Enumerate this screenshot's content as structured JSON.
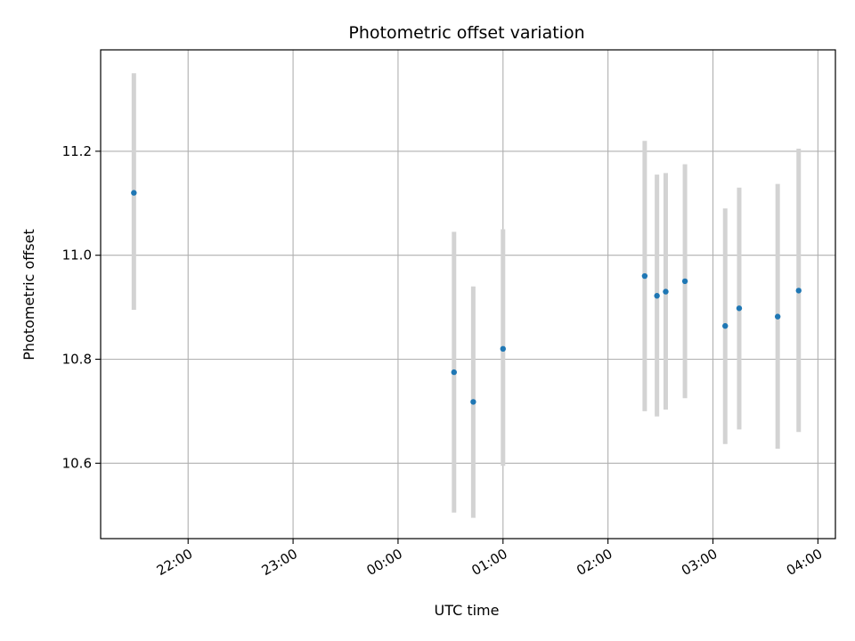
{
  "chart_data": {
    "type": "scatter",
    "title": "Photometric offset variation",
    "xlabel": "UTC time",
    "ylabel": "Photometric offset",
    "x_is_time": true,
    "xlim": [
      "21:10",
      "04:10"
    ],
    "ylim": [
      10.455,
      11.395
    ],
    "grid": true,
    "point_color": "#1f77b4",
    "errorbar_color": "#d3d3d3",
    "x_ticks": [
      {
        "value": "22:00",
        "label": "22:00"
      },
      {
        "value": "23:00",
        "label": "23:00"
      },
      {
        "value": "24:00",
        "label": "00:00"
      },
      {
        "value": "25:00",
        "label": "01:00"
      },
      {
        "value": "26:00",
        "label": "02:00"
      },
      {
        "value": "27:00",
        "label": "03:00"
      },
      {
        "value": "28:00",
        "label": "04:00"
      }
    ],
    "y_ticks": [
      {
        "value": 10.6,
        "label": "10.6"
      },
      {
        "value": 10.8,
        "label": "10.8"
      },
      {
        "value": 11.0,
        "label": "11.0"
      },
      {
        "value": 11.2,
        "label": "11.2"
      }
    ],
    "points": [
      {
        "time": "21:29",
        "y": 11.12,
        "yerr_low": 10.895,
        "yerr_high": 11.35
      },
      {
        "time": "00:32",
        "y": 10.775,
        "yerr_low": 10.505,
        "yerr_high": 11.045
      },
      {
        "time": "00:43",
        "y": 10.718,
        "yerr_low": 10.495,
        "yerr_high": 10.94
      },
      {
        "time": "01:00",
        "y": 10.82,
        "yerr_low": 10.595,
        "yerr_high": 11.05
      },
      {
        "time": "02:21",
        "y": 10.96,
        "yerr_low": 10.7,
        "yerr_high": 11.22
      },
      {
        "time": "02:28",
        "y": 10.922,
        "yerr_low": 10.69,
        "yerr_high": 11.155
      },
      {
        "time": "02:33",
        "y": 10.93,
        "yerr_low": 10.703,
        "yerr_high": 11.158
      },
      {
        "time": "02:44",
        "y": 10.95,
        "yerr_low": 10.725,
        "yerr_high": 11.175
      },
      {
        "time": "03:07",
        "y": 10.864,
        "yerr_low": 10.637,
        "yerr_high": 11.09
      },
      {
        "time": "03:15",
        "y": 10.898,
        "yerr_low": 10.665,
        "yerr_high": 11.13
      },
      {
        "time": "03:37",
        "y": 10.882,
        "yerr_low": 10.628,
        "yerr_high": 11.137
      },
      {
        "time": "03:49",
        "y": 10.932,
        "yerr_low": 10.66,
        "yerr_high": 11.205
      }
    ]
  }
}
